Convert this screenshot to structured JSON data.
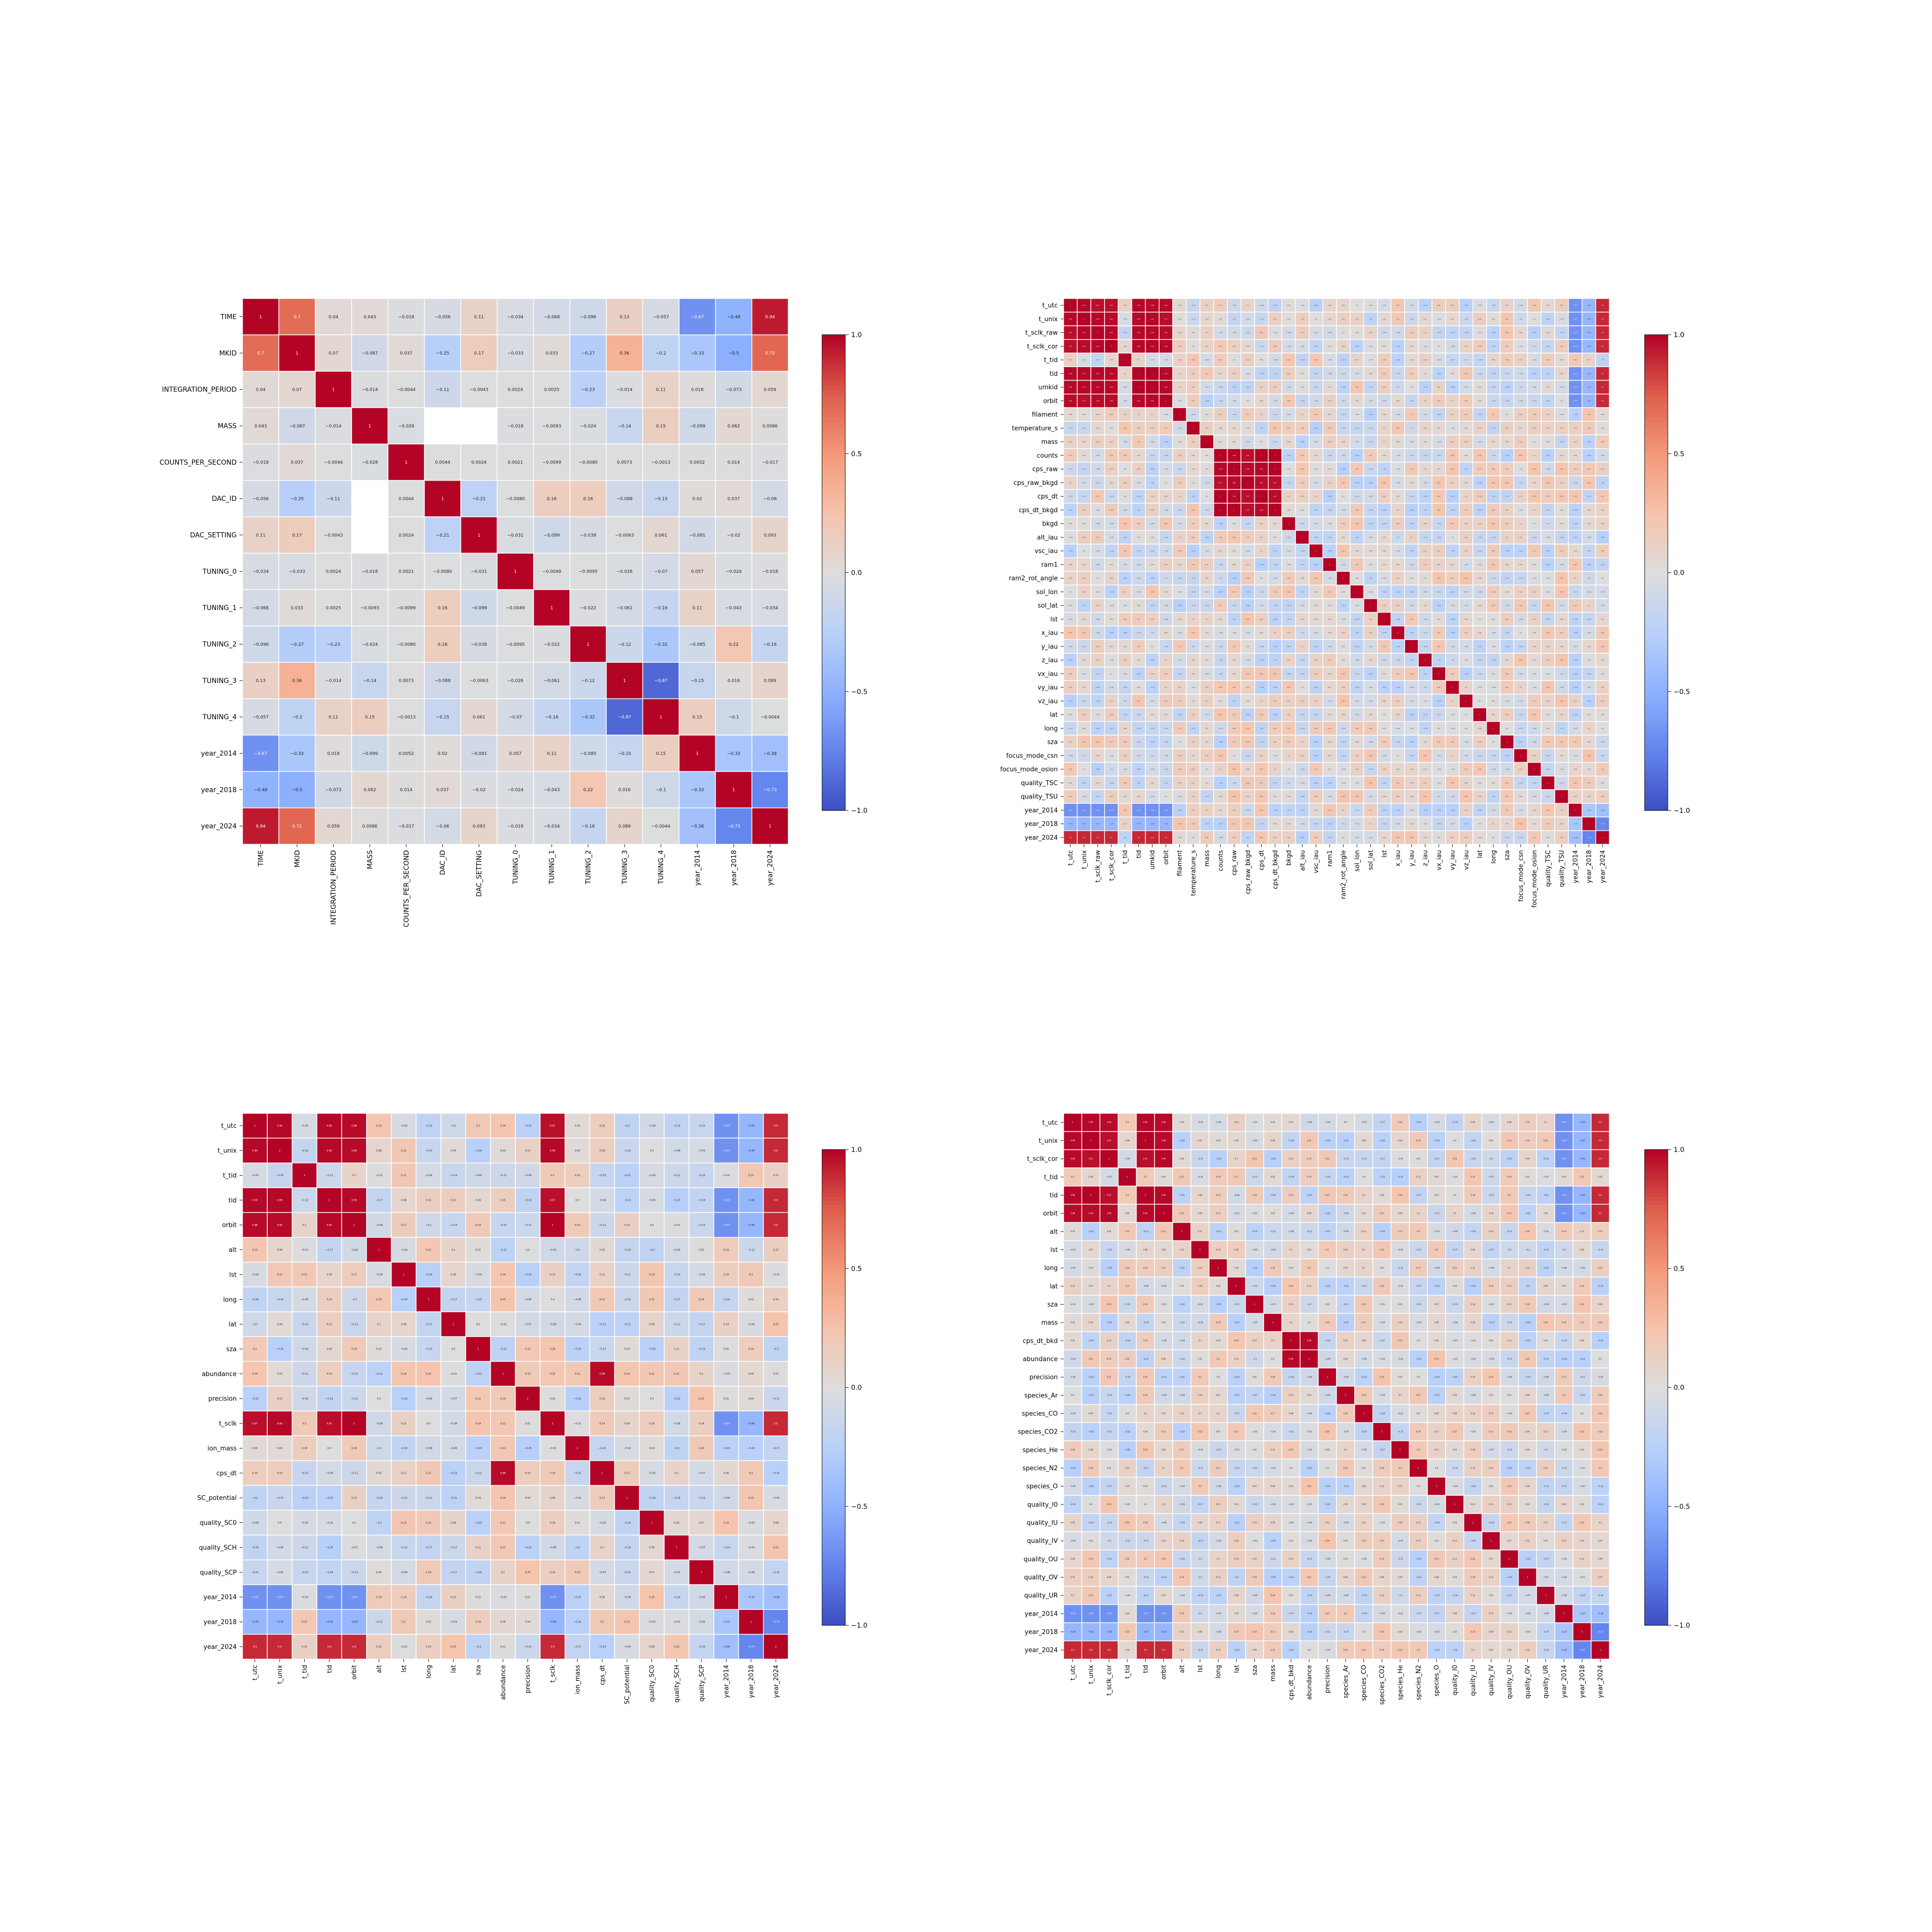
{
  "colorbar": {
    "ticks": [
      1.0,
      0.5,
      0.0,
      -0.5,
      -1.0
    ],
    "tick_labels": [
      "1.0",
      "0.5",
      "0.0",
      "−0.5",
      "−1.0"
    ],
    "colormap": "coolwarm",
    "colors": {
      "neg": "#3b4cc0",
      "mid": "#dddddd",
      "pos": "#b40426"
    }
  },
  "chart_data": [
    {
      "type": "heatmap",
      "title": "",
      "variables": [
        "TIME",
        "MKID",
        "INTEGRATION_PERIOD",
        "MASS",
        "COUNTS_PER_SECOND",
        "DAC_ID",
        "DAC_SETTING",
        "TUNING_0",
        "TUNING_1",
        "TUNING_2",
        "TUNING_3",
        "TUNING_4",
        "year_2014",
        "year_2018",
        "year_2024"
      ],
      "values": [
        [
          1,
          0.7,
          0.04,
          0.043,
          -0.018,
          -0.056,
          0.11,
          -0.034,
          -0.068,
          -0.096,
          0.13,
          -0.057,
          -0.67,
          -0.48,
          0.94
        ],
        [
          0.7,
          1,
          0.07,
          -0.087,
          0.037,
          -0.25,
          0.17,
          -0.033,
          0.033,
          -0.27,
          0.36,
          -0.2,
          -0.33,
          -0.5,
          0.72
        ],
        [
          0.04,
          0.07,
          1,
          -0.014,
          -0.0044,
          -0.11,
          -0.0043,
          0.0024,
          0.0025,
          -0.23,
          -0.014,
          0.11,
          0.018,
          -0.073,
          0.059
        ],
        [
          0.043,
          -0.087,
          -0.014,
          1,
          -0.028,
          null,
          null,
          -0.018,
          -0.0093,
          -0.024,
          -0.14,
          0.15,
          -0.099,
          0.062,
          0.0086
        ],
        [
          -0.018,
          0.037,
          -0.0044,
          -0.028,
          1,
          0.0044,
          0.0024,
          0.0021,
          -0.0099,
          -0.008,
          0.0073,
          -0.0013,
          0.0052,
          0.014,
          -0.017
        ],
        [
          -0.056,
          -0.25,
          -0.11,
          null,
          0.0044,
          1,
          -0.21,
          -0.008,
          0.16,
          0.16,
          -0.088,
          -0.15,
          0.02,
          0.037,
          -0.06
        ],
        [
          0.11,
          0.17,
          -0.0043,
          null,
          0.0024,
          -0.21,
          1,
          -0.031,
          -0.099,
          -0.038,
          -0.0063,
          0.061,
          -0.081,
          -0.02,
          0.093
        ],
        [
          -0.034,
          -0.033,
          0.0024,
          -0.018,
          0.0021,
          -0.008,
          -0.031,
          1,
          -0.0049,
          -0.0095,
          -0.026,
          -0.07,
          0.057,
          -0.024,
          -0.018
        ],
        [
          -0.068,
          0.033,
          0.0025,
          -0.0093,
          -0.0099,
          0.16,
          -0.099,
          -0.0049,
          1,
          -0.022,
          -0.061,
          -0.16,
          0.11,
          -0.043,
          -0.034
        ],
        [
          -0.096,
          -0.27,
          -0.23,
          -0.024,
          -0.008,
          0.16,
          -0.038,
          -0.0095,
          -0.022,
          1,
          -0.12,
          -0.32,
          -0.085,
          0.22,
          -0.16
        ],
        [
          0.13,
          0.36,
          -0.014,
          -0.14,
          0.0073,
          -0.088,
          -0.0063,
          -0.026,
          -0.061,
          -0.12,
          1,
          -0.87,
          -0.15,
          0.016,
          0.089
        ],
        [
          -0.057,
          -0.2,
          0.11,
          0.15,
          -0.0013,
          -0.15,
          0.061,
          -0.07,
          -0.16,
          -0.32,
          -0.87,
          1,
          0.15,
          -0.1,
          -0.0044
        ],
        [
          -0.67,
          -0.33,
          0.018,
          -0.099,
          0.0052,
          0.02,
          -0.081,
          0.057,
          0.11,
          -0.085,
          -0.15,
          0.15,
          1,
          -0.33,
          -0.38
        ],
        [
          -0.48,
          -0.5,
          -0.073,
          0.062,
          0.014,
          0.037,
          -0.02,
          -0.024,
          -0.043,
          0.22,
          0.016,
          -0.1,
          -0.33,
          1,
          -0.73
        ],
        [
          0.94,
          0.72,
          0.059,
          0.0086,
          -0.017,
          -0.06,
          0.093,
          -0.018,
          -0.034,
          -0.16,
          0.089,
          -0.0044,
          -0.38,
          -0.73,
          1
        ]
      ],
      "vmin": -1,
      "vmax": 1
    },
    {
      "type": "heatmap",
      "title": "",
      "variables": [
        "t_utc",
        "t_unix",
        "t_sclk_raw",
        "t_sclk_cor",
        "t_tid",
        "tid",
        "umkid",
        "orbit",
        "filament",
        "temperature_s",
        "mass",
        "counts",
        "cps_raw",
        "cps_raw_bkgd",
        "cps_dt",
        "cps_dt_bkgd",
        "bkgd",
        "alt_iau",
        "vsc_iau",
        "ram1",
        "ram2_rot_angle",
        "sol_lon",
        "sol_lat",
        "lst",
        "x_iau",
        "y_iau",
        "z_iau",
        "vx_iau",
        "vy_iau",
        "vz_iau",
        "lat",
        "long",
        "sza",
        "focus_mode_csn",
        "focus_mode_osion",
        "quality_TSC",
        "quality_TSU",
        "year_2014",
        "year_2018",
        "year_2024"
      ],
      "groups": [
        [
          0,
          1,
          2,
          3,
          5,
          6,
          7
        ],
        [
          11,
          12,
          13,
          14,
          15
        ],
        [
          37
        ],
        [
          38
        ],
        [
          39
        ]
      ],
      "values": "approximate: see script-generated matrix",
      "vmin": -1,
      "vmax": 1
    },
    {
      "type": "heatmap",
      "title": "",
      "variables": [
        "t_utc",
        "t_unix",
        "t_tid",
        "tid",
        "orbit",
        "alt",
        "lst",
        "long",
        "lat",
        "sza",
        "abundance",
        "precision",
        "t_sclk",
        "ion_mass",
        "cps_dt",
        "SC_potential",
        "quality_SC0",
        "quality_SCH",
        "quality_SCP",
        "year_2014",
        "year_2018",
        "year_2024"
      ],
      "groups": [
        [
          0,
          1,
          3,
          4,
          12
        ],
        [
          10,
          14
        ],
        [
          19
        ],
        [
          20
        ],
        [
          21
        ]
      ],
      "values": "approximate: see script-generated matrix",
      "vmin": -1,
      "vmax": 1
    },
    {
      "type": "heatmap",
      "title": "",
      "variables": [
        "t_utc",
        "t_unix",
        "t_sclk_cor",
        "t_tid",
        "tid",
        "orbit",
        "alt",
        "lst",
        "long",
        "lat",
        "sza",
        "mass",
        "cps_dt_bkd",
        "abundance",
        "precision",
        "species_Ar",
        "species_CO",
        "species_CO2",
        "species_He",
        "species_N2",
        "species_O",
        "quality_I0",
        "quality_IU",
        "quality_IV",
        "quality_OU",
        "quality_OV",
        "quality_UR",
        "year_2014",
        "year_2018",
        "year_2024"
      ],
      "groups": [
        [
          0,
          1,
          2,
          4,
          5
        ],
        [
          12,
          13
        ],
        [
          27
        ],
        [
          28
        ],
        [
          29
        ]
      ],
      "values": "approximate: see script-generated matrix",
      "vmin": -1,
      "vmax": 1
    }
  ]
}
